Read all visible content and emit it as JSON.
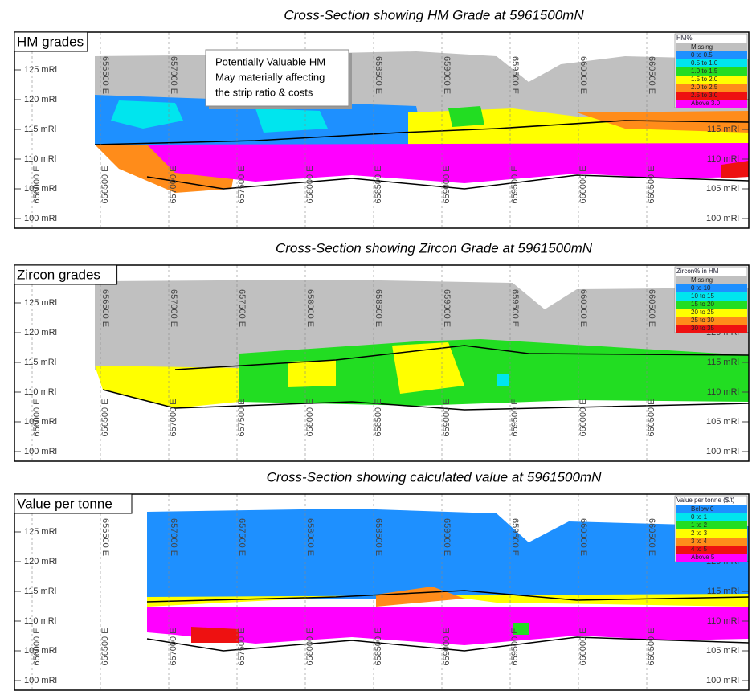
{
  "panels": [
    {
      "title": "Cross-Section showing HM Grade at 5961500mN",
      "label": "HM grades",
      "legend": {
        "title": "HM%",
        "items": [
          {
            "label": "Missing",
            "color": "#c0c0c0"
          },
          {
            "label": "0 to 0.5",
            "color": "#1e90ff"
          },
          {
            "label": "0.5 to 1.0",
            "color": "#00e5ee"
          },
          {
            "label": "1.0 to 1.5",
            "color": "#22dd22"
          },
          {
            "label": "1.5 to 2.0",
            "color": "#ffff00"
          },
          {
            "label": "2.0 to 2.5",
            "color": "#ff8c1a"
          },
          {
            "label": "2.5 to 3.0",
            "color": "#ee1111"
          },
          {
            "label": "Above 3.0",
            "color": "#ff00ff"
          }
        ]
      },
      "callout": [
        "Potentially Valuable HM",
        "May materially affecting",
        "the strip ratio & costs"
      ]
    },
    {
      "title": "Cross-Section showing Zircon Grade at 5961500mN",
      "label": "Zircon grades",
      "legend": {
        "title": "Zircon% in HM",
        "items": [
          {
            "label": "Missing",
            "color": "#c0c0c0"
          },
          {
            "label": "0 to 10",
            "color": "#1e90ff"
          },
          {
            "label": "10 to 15",
            "color": "#00e5ee"
          },
          {
            "label": "15 to 20",
            "color": "#22dd22"
          },
          {
            "label": "20 to 25",
            "color": "#ffff00"
          },
          {
            "label": "25 to 30",
            "color": "#ff8c1a"
          },
          {
            "label": "30 to 35",
            "color": "#ee1111"
          }
        ]
      }
    },
    {
      "title": "Cross-Section showing calculated value at 5961500mN",
      "label": "Value per tonne",
      "legend": {
        "title": "Value per tonne ($/t)",
        "items": [
          {
            "label": "Below 0",
            "color": "#1e90ff"
          },
          {
            "label": "0 to 1",
            "color": "#00e5ee"
          },
          {
            "label": "1 to 2",
            "color": "#22dd22"
          },
          {
            "label": "2 to 3",
            "color": "#ffff00"
          },
          {
            "label": "3 to 4",
            "color": "#ff8c1a"
          },
          {
            "label": "4 to 5",
            "color": "#ee1111"
          },
          {
            "label": "Above 5",
            "color": "#ff00ff"
          }
        ]
      }
    }
  ],
  "eastings": [
    "656000 E",
    "656500 E",
    "657000 E",
    "657500 E",
    "658000 E",
    "658500 E",
    "659000 E",
    "659500 E",
    "660000 E",
    "660500 E"
  ],
  "elevations": [
    "125 mRl",
    "120 mRl",
    "115 mRl",
    "110 mRl",
    "105 mRl",
    "100 mRl"
  ]
}
